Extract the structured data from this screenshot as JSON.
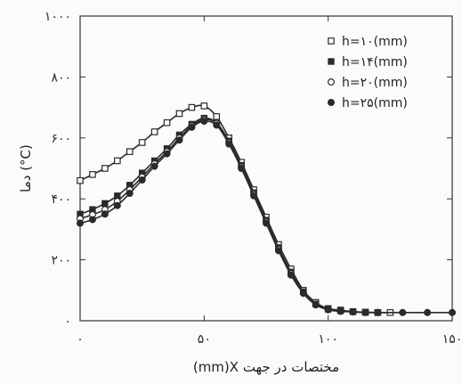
{
  "chart_data": {
    "type": "scatter",
    "title": "",
    "xlabel": "(mm)X مختصات در جهت",
    "ylabel": "دما (°C)",
    "xlim": [
      0,
      150
    ],
    "ylim": [
      0,
      1000
    ],
    "x_tick_values": [
      0,
      50,
      100,
      150
    ],
    "y_tick_values": [
      0,
      200,
      400,
      600,
      800,
      1000
    ],
    "x_tick_labels": [
      "۰",
      "۵۰",
      "۱۰۰",
      "۱۵۰"
    ],
    "y_tick_labels": [
      "۰",
      "۲۰۰",
      "۴۰۰",
      "۶۰۰",
      "۸۰۰",
      "۱۰۰۰"
    ],
    "grid": false,
    "legend_position": "top-right",
    "series": [
      {
        "name": "h=۱۰(mm)",
        "marker": "open-square",
        "color": "#2b2b2b",
        "x": [
          0,
          5,
          10,
          15,
          20,
          25,
          30,
          35,
          40,
          45,
          50,
          55,
          60,
          65,
          70,
          75,
          80,
          85,
          90,
          95,
          100,
          105,
          110,
          115,
          120,
          125
        ],
        "y": [
          460,
          480,
          500,
          525,
          555,
          585,
          620,
          650,
          680,
          700,
          705,
          670,
          600,
          520,
          430,
          340,
          250,
          170,
          100,
          60,
          40,
          35,
          30,
          28,
          27,
          27
        ]
      },
      {
        "name": "h=۱۴(mm)",
        "marker": "filled-square",
        "color": "#2b2b2b",
        "x": [
          0,
          5,
          10,
          15,
          20,
          25,
          30,
          35,
          40,
          45,
          50,
          55,
          60,
          65,
          70,
          75,
          80,
          85,
          90,
          95,
          100,
          105,
          110,
          115,
          120
        ],
        "y": [
          350,
          365,
          385,
          410,
          445,
          485,
          525,
          565,
          610,
          645,
          665,
          650,
          590,
          510,
          420,
          330,
          240,
          160,
          95,
          55,
          38,
          33,
          30,
          28,
          27
        ]
      },
      {
        "name": "h=۲۰(mm)",
        "marker": "open-circle",
        "color": "#2b2b2b",
        "x": [
          0,
          5,
          10,
          15,
          20,
          25,
          30,
          35,
          40,
          45,
          50,
          55,
          60,
          65,
          70,
          75,
          80,
          85,
          90,
          95,
          100,
          105,
          110,
          115,
          120
        ],
        "y": [
          335,
          348,
          365,
          392,
          430,
          472,
          515,
          555,
          600,
          640,
          660,
          648,
          585,
          505,
          415,
          325,
          235,
          155,
          92,
          54,
          37,
          32,
          29,
          27,
          27
        ]
      },
      {
        "name": "h=۲۵(mm)",
        "marker": "filled-circle",
        "color": "#2b2b2b",
        "x": [
          0,
          5,
          10,
          15,
          20,
          25,
          30,
          35,
          40,
          45,
          50,
          55,
          60,
          65,
          70,
          75,
          80,
          85,
          90,
          95,
          100,
          105,
          110,
          115,
          120,
          130,
          140,
          150
        ],
        "y": [
          320,
          332,
          350,
          378,
          418,
          462,
          507,
          548,
          593,
          635,
          655,
          642,
          580,
          500,
          410,
          320,
          230,
          150,
          90,
          52,
          36,
          31,
          29,
          27,
          27,
          27,
          27,
          27
        ]
      }
    ]
  }
}
